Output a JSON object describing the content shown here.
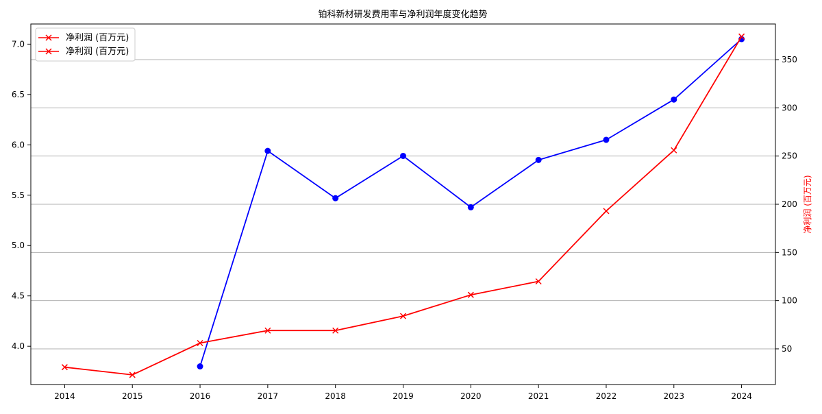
{
  "chart_data": {
    "type": "line",
    "title": "铂科新材研发费用率与净利润年度变化趋势",
    "xlabel": "",
    "ylabel_left": "",
    "ylabel_right": "净利润 (百万元)",
    "x": [
      2014,
      2015,
      2016,
      2017,
      2018,
      2019,
      2020,
      2021,
      2022,
      2023,
      2024
    ],
    "x_ticks": [
      "2014",
      "2015",
      "2016",
      "2017",
      "2018",
      "2019",
      "2020",
      "2021",
      "2022",
      "2023",
      "2024"
    ],
    "left_axis": {
      "ylim": [
        3.62,
        7.2
      ],
      "ticks": [
        "4.0",
        "4.5",
        "5.0",
        "5.5",
        "6.0",
        "6.5",
        "7.0"
      ],
      "tick_values": [
        4.0,
        4.5,
        5.0,
        5.5,
        6.0,
        6.5,
        7.0
      ]
    },
    "right_axis": {
      "ylim": [
        13,
        387
      ],
      "ticks": [
        "50",
        "100",
        "150",
        "200",
        "250",
        "300",
        "350"
      ],
      "tick_values": [
        50,
        100,
        150,
        200,
        250,
        300,
        350
      ]
    },
    "grid": "horizontal, right axis",
    "legend_position": "top-left",
    "series": [
      {
        "axis": "left",
        "color": "#0000ff",
        "marker": "circle",
        "values": [
          null,
          null,
          3.8,
          5.94,
          5.47,
          5.89,
          5.38,
          5.85,
          6.05,
          6.45,
          7.05
        ]
      },
      {
        "name": "净利润 (百万元)",
        "axis": "right",
        "color": "#ff0000",
        "marker": "x",
        "values": [
          31,
          23,
          56,
          69,
          69,
          84,
          106,
          120,
          193,
          256,
          374
        ]
      }
    ],
    "legend": [
      "净利润 (百万元)",
      "净利润 (百万元)"
    ]
  }
}
